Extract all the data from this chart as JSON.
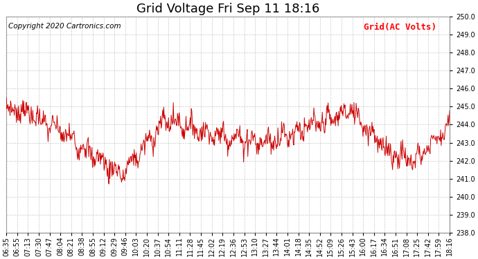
{
  "title": "Grid Voltage Fri Sep 11 18:16",
  "copyright_text": "Copyright 2020 Cartronics.com",
  "legend_label": "Grid(AC Volts)",
  "legend_color": "#ff0000",
  "line_color": "#cc0000",
  "background_color": "#ffffff",
  "grid_color": "#bbbbbb",
  "ylim": [
    238.0,
    250.0
  ],
  "yticks": [
    238.0,
    239.0,
    240.0,
    241.0,
    242.0,
    243.0,
    244.0,
    245.0,
    246.0,
    247.0,
    248.0,
    249.0,
    250.0
  ],
  "xtick_labels": [
    "06:35",
    "06:55",
    "07:13",
    "07:30",
    "07:47",
    "08:04",
    "08:21",
    "08:38",
    "08:55",
    "09:12",
    "09:29",
    "09:46",
    "10:03",
    "10:20",
    "10:37",
    "10:54",
    "11:11",
    "11:28",
    "11:45",
    "12:02",
    "12:19",
    "12:36",
    "12:53",
    "13:10",
    "13:27",
    "13:44",
    "14:01",
    "14:18",
    "14:35",
    "14:52",
    "15:09",
    "15:26",
    "15:43",
    "16:00",
    "16:17",
    "16:34",
    "16:51",
    "17:08",
    "17:25",
    "17:42",
    "17:59",
    "18:16"
  ],
  "title_fontsize": 13,
  "tick_fontsize": 7,
  "copyright_fontsize": 7.5,
  "legend_fontsize": 9
}
